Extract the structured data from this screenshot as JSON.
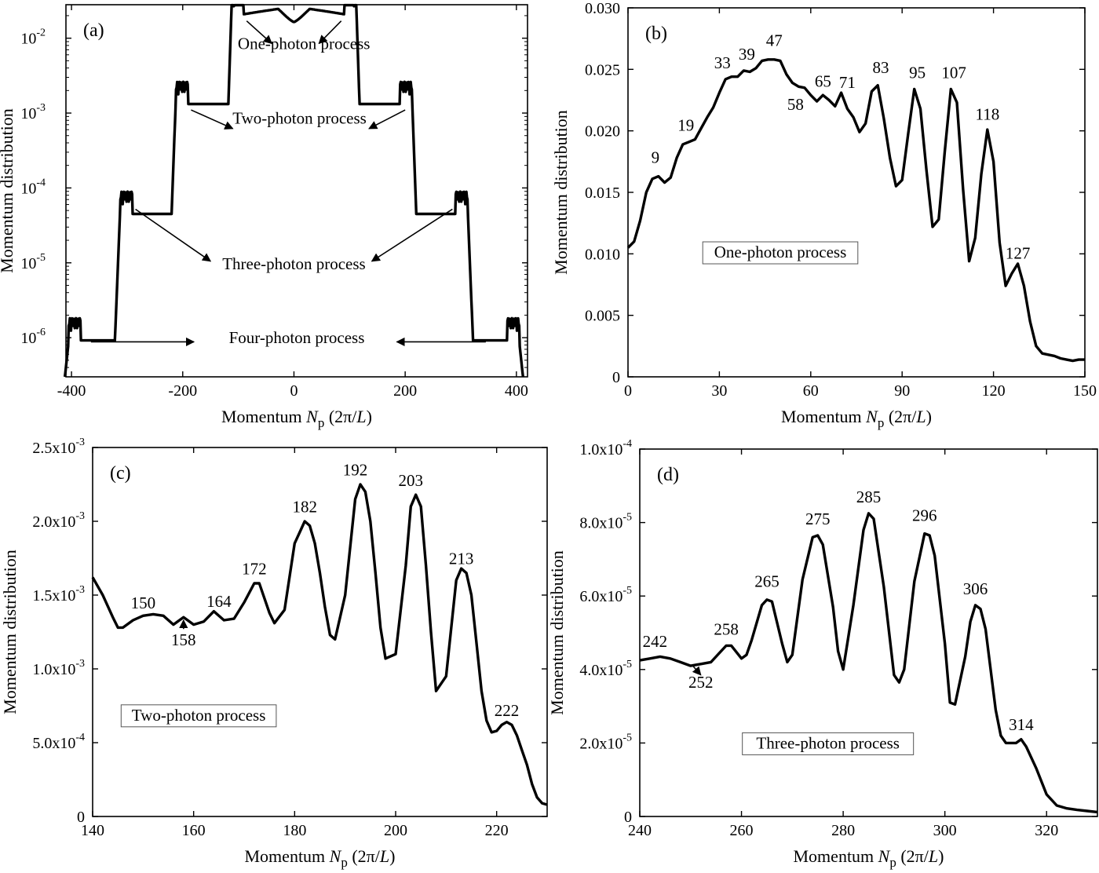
{
  "chart_data": [
    {
      "type": "line",
      "panel_label": "(a)",
      "xlabel_prefix": "Momentum ",
      "xlabel_symbol": "N",
      "xlabel_sub": "p",
      "xlabel_unit_open": " (2π/",
      "xlabel_unit_L": "L",
      "xlabel_unit_close": ")",
      "ylabel": "Momentum distribution",
      "xlim": [
        -410,
        420
      ],
      "ylim": [
        3e-07,
        0.028
      ],
      "yscale": "log",
      "xticks": [
        -400,
        -200,
        0,
        200,
        400
      ],
      "xtick_labels": [
        "-400",
        "-200",
        "0",
        "200",
        "400"
      ],
      "yticks": [
        1e-06,
        1e-05,
        0.0001,
        0.001,
        0.01
      ],
      "ytick_base": "10",
      "ytick_exponents": [
        "-6",
        "-5",
        "-4",
        "-3",
        "-2"
      ],
      "annotations": [
        {
          "text": "One-photon process",
          "x": 18,
          "y": 0.0072
        },
        {
          "text": "Two-photon process",
          "x": 10,
          "y": 0.00072
        },
        {
          "text": "Three-photon process",
          "x": 0,
          "y": 8.2e-06
        },
        {
          "text": "Four-photon process",
          "x": 5,
          "y": 8.5e-07
        }
      ],
      "arrows": [
        {
          "from": [
            -85,
            0.017
          ],
          "to": [
            -40,
            0.0085
          ]
        },
        {
          "from": [
            85,
            0.017
          ],
          "to": [
            45,
            0.0085
          ]
        },
        {
          "from": [
            -185,
            0.0011
          ],
          "to": [
            -110,
            0.00062
          ]
        },
        {
          "from": [
            200,
            0.0011
          ],
          "to": [
            135,
            0.00062
          ]
        },
        {
          "from": [
            -285,
            5.2e-05
          ],
          "to": [
            -150,
            1.05e-05
          ]
        },
        {
          "from": [
            285,
            5.2e-05
          ],
          "to": [
            140,
            1.05e-05
          ]
        },
        {
          "from": [
            -365,
            8.8e-07
          ],
          "to": [
            -180,
            8.8e-07
          ]
        },
        {
          "from": [
            345,
            8.8e-07
          ],
          "to": [
            185,
            8.8e-07
          ]
        }
      ]
    },
    {
      "type": "line",
      "panel_label": "(b)",
      "xlabel_prefix": "Momentum ",
      "xlabel_symbol": "N",
      "xlabel_sub": "p",
      "xlabel_unit_open": " (2π/",
      "xlabel_unit_L": "L",
      "xlabel_unit_close": ")",
      "ylabel": "Momentum distribution",
      "xlim": [
        0,
        150
      ],
      "ylim": [
        0,
        0.03
      ],
      "xticks": [
        0,
        30,
        60,
        90,
        120,
        150
      ],
      "xtick_labels": [
        "0",
        "30",
        "60",
        "90",
        "120",
        "150"
      ],
      "yticks": [
        0,
        0.005,
        0.01,
        0.015,
        0.02,
        0.025,
        0.03
      ],
      "ytick_labels": [
        "0",
        "0.005",
        "0.010",
        "0.015",
        "0.020",
        "0.025",
        "0.030"
      ],
      "x": [
        0,
        2,
        4,
        6,
        8,
        10,
        12,
        14,
        16,
        18,
        20,
        22,
        24,
        26,
        28,
        30,
        32,
        34,
        36,
        38,
        40,
        42,
        44,
        46,
        48,
        50,
        52,
        54,
        56,
        58,
        60,
        62,
        64,
        66,
        68,
        70,
        72,
        74,
        76,
        78,
        80,
        82,
        84,
        86,
        88,
        90,
        92,
        94,
        96,
        98,
        100,
        102,
        104,
        106,
        108,
        110,
        112,
        114,
        116,
        118,
        120,
        122,
        124,
        126,
        128,
        130,
        132,
        134,
        136,
        138,
        140,
        142,
        144,
        146,
        148,
        150
      ],
      "y": [
        0.0105,
        0.011,
        0.0127,
        0.015,
        0.0161,
        0.0163,
        0.0158,
        0.0162,
        0.0178,
        0.0189,
        0.0191,
        0.0193,
        0.0202,
        0.0211,
        0.0219,
        0.0231,
        0.0242,
        0.0244,
        0.0244,
        0.0249,
        0.0248,
        0.0251,
        0.0257,
        0.0258,
        0.0258,
        0.0257,
        0.0246,
        0.0239,
        0.0236,
        0.0235,
        0.0229,
        0.0224,
        0.0229,
        0.0225,
        0.022,
        0.0231,
        0.0218,
        0.0211,
        0.0199,
        0.0206,
        0.0232,
        0.0237,
        0.021,
        0.0178,
        0.0155,
        0.016,
        0.0198,
        0.0234,
        0.0218,
        0.0168,
        0.0122,
        0.0128,
        0.0183,
        0.0234,
        0.0223,
        0.0153,
        0.0094,
        0.0113,
        0.0165,
        0.0201,
        0.0175,
        0.0109,
        0.0074,
        0.0084,
        0.0092,
        0.0074,
        0.0045,
        0.0025,
        0.0019,
        0.0018,
        0.0017,
        0.0015,
        0.0014,
        0.0013,
        0.0014,
        0.0014
      ],
      "peak_labels": [
        {
          "text": "9",
          "x": 9,
          "y": 0.0174
        },
        {
          "text": "19",
          "x": 19,
          "y": 0.02
        },
        {
          "text": "33",
          "x": 31,
          "y": 0.0251
        },
        {
          "text": "39",
          "x": 39,
          "y": 0.0258
        },
        {
          "text": "47",
          "x": 48,
          "y": 0.0269
        },
        {
          "text": "58",
          "x": 55,
          "y": 0.0217
        },
        {
          "text": "65",
          "x": 64,
          "y": 0.0236
        },
        {
          "text": "71",
          "x": 72,
          "y": 0.0235
        },
        {
          "text": "83",
          "x": 83,
          "y": 0.0247
        },
        {
          "text": "95",
          "x": 95,
          "y": 0.0243
        },
        {
          "text": "107",
          "x": 107,
          "y": 0.0243
        },
        {
          "text": "118",
          "x": 118,
          "y": 0.0209
        },
        {
          "text": "127",
          "x": 128,
          "y": 0.0096
        }
      ],
      "boxed_label": {
        "text": "One-photon process",
        "x": 50,
        "y": 0.0097
      }
    },
    {
      "type": "line",
      "panel_label": "(c)",
      "xlabel_prefix": "Momentum ",
      "xlabel_symbol": "N",
      "xlabel_sub": "p",
      "xlabel_unit_open": " (2π/",
      "xlabel_unit_L": "L",
      "xlabel_unit_close": ")",
      "ylabel": "Momentum distribution",
      "xlim": [
        140,
        230
      ],
      "ylim": [
        0,
        0.0025
      ],
      "xticks": [
        140,
        160,
        180,
        200,
        220
      ],
      "xtick_labels": [
        "140",
        "160",
        "180",
        "200",
        "220"
      ],
      "yticks": [
        0,
        0.0005,
        0.001,
        0.0015,
        0.002,
        0.0025
      ],
      "ytick_labels": [
        "0",
        "5.0x10",
        "1.0x10",
        "1.5x10",
        "2.0x10",
        "2.5x10"
      ],
      "ytick_exponents": [
        "",
        "-4",
        "-3",
        "-3",
        "-3",
        "-3"
      ],
      "x": [
        140,
        142,
        144,
        145,
        146,
        148,
        150,
        152,
        154,
        156,
        158,
        160,
        162,
        164,
        166,
        168,
        170,
        172,
        173,
        175,
        176,
        178,
        180,
        182,
        183,
        184,
        185,
        186,
        187,
        188,
        190,
        192,
        193,
        194,
        195,
        196,
        197,
        198,
        200,
        202,
        203,
        204,
        205,
        206,
        207,
        208,
        210,
        212,
        213,
        214,
        215,
        216,
        217,
        218,
        219,
        220,
        221,
        222,
        223,
        224,
        225,
        226,
        227,
        228,
        229,
        230
      ],
      "y": [
        0.00162,
        0.0015,
        0.00135,
        0.00128,
        0.00128,
        0.00133,
        0.00136,
        0.00137,
        0.00136,
        0.0013,
        0.00135,
        0.0013,
        0.00132,
        0.00139,
        0.00133,
        0.00134,
        0.00145,
        0.00158,
        0.00158,
        0.00138,
        0.00131,
        0.0014,
        0.00185,
        0.002,
        0.00197,
        0.00185,
        0.00165,
        0.00142,
        0.00123,
        0.0012,
        0.0015,
        0.00215,
        0.00225,
        0.0022,
        0.002,
        0.00165,
        0.00128,
        0.00107,
        0.0011,
        0.0017,
        0.0021,
        0.00218,
        0.0021,
        0.0017,
        0.00125,
        0.00085,
        0.00095,
        0.0016,
        0.00168,
        0.00165,
        0.0015,
        0.00118,
        0.00085,
        0.00065,
        0.00057,
        0.00058,
        0.00062,
        0.00064,
        0.00062,
        0.00055,
        0.00045,
        0.00035,
        0.00022,
        0.00013,
        9e-05,
        8e-05
      ],
      "peak_labels": [
        {
          "text": "150",
          "x": 150,
          "y": 0.00141
        },
        {
          "text": "164",
          "x": 165,
          "y": 0.00142
        },
        {
          "text": "172",
          "x": 172,
          "y": 0.00164
        },
        {
          "text": "182",
          "x": 182,
          "y": 0.00206
        },
        {
          "text": "192",
          "x": 192,
          "y": 0.00231
        },
        {
          "text": "203",
          "x": 203,
          "y": 0.00224
        },
        {
          "text": "213",
          "x": 213,
          "y": 0.00171
        },
        {
          "text": "222",
          "x": 222,
          "y": 0.00068
        }
      ],
      "arrow_labels": [
        {
          "text": "158",
          "x": 158,
          "y": 0.00116,
          "arrow_from": [
            158,
            0.00127
          ],
          "arrow_to": [
            158,
            0.00133
          ]
        }
      ],
      "boxed_label": {
        "text": "Two-photon process",
        "x": 161,
        "y": 0.00065
      }
    },
    {
      "type": "line",
      "panel_label": "(d)",
      "xlabel_prefix": "Momentum ",
      "xlabel_symbol": "N",
      "xlabel_sub": "p",
      "xlabel_unit_open": " (2π/",
      "xlabel_unit_L": "L",
      "xlabel_unit_close": ")",
      "ylabel": "Momentum distribution",
      "xlim": [
        240,
        330
      ],
      "ylim": [
        0,
        0.0001
      ],
      "xticks": [
        240,
        260,
        280,
        300,
        320
      ],
      "xtick_labels": [
        "240",
        "260",
        "280",
        "300",
        "320"
      ],
      "yticks": [
        0,
        2e-05,
        4e-05,
        6e-05,
        8e-05,
        0.0001
      ],
      "ytick_labels": [
        "0",
        "2.0x10",
        "4.0x10",
        "6.0x10",
        "8.0x10",
        "1.0x10"
      ],
      "ytick_exponents": [
        "",
        "-5",
        "-5",
        "-5",
        "-5",
        "-4"
      ],
      "x": [
        240,
        242,
        244,
        246,
        248,
        250,
        252,
        254,
        256,
        257,
        258,
        260,
        261,
        262,
        264,
        265,
        266,
        268,
        269,
        270,
        272,
        274,
        275,
        276,
        278,
        279,
        280,
        282,
        284,
        285,
        286,
        288,
        290,
        291,
        292,
        294,
        296,
        297,
        298,
        300,
        301,
        302,
        304,
        305,
        306,
        307,
        308,
        310,
        311,
        312,
        314,
        315,
        316,
        318,
        320,
        322,
        324,
        326,
        328,
        330
      ],
      "y": [
        4.25e-05,
        4.3e-05,
        4.35e-05,
        4.3e-05,
        4.2e-05,
        4.1e-05,
        4.15e-05,
        4.2e-05,
        4.5e-05,
        4.65e-05,
        4.65e-05,
        4.3e-05,
        4.4e-05,
        4.8e-05,
        5.75e-05,
        5.9e-05,
        5.85e-05,
        4.7e-05,
        4.2e-05,
        4.4e-05,
        6.45e-05,
        7.6e-05,
        7.65e-05,
        7.4e-05,
        5.7e-05,
        4.5e-05,
        4e-05,
        5.75e-05,
        7.8e-05,
        8.25e-05,
        8.1e-05,
        6.25e-05,
        3.85e-05,
        3.65e-05,
        4e-05,
        6.4e-05,
        7.7e-05,
        7.65e-05,
        7.1e-05,
        4.7e-05,
        3.1e-05,
        3.05e-05,
        4.35e-05,
        5.3e-05,
        5.75e-05,
        5.65e-05,
        5.1e-05,
        2.9e-05,
        2.2e-05,
        2e-05,
        2e-05,
        2.1e-05,
        1.9e-05,
        1.3e-05,
        6e-06,
        3e-06,
        2.2e-06,
        1.8e-06,
        1.5e-06,
        1.2e-06
      ],
      "peak_labels": [
        {
          "text": "242",
          "x": 243,
          "y": 4.62e-05
        },
        {
          "text": "258",
          "x": 257,
          "y": 4.95e-05
        },
        {
          "text": "265",
          "x": 265,
          "y": 6.25e-05
        },
        {
          "text": "275",
          "x": 275,
          "y": 7.95e-05
        },
        {
          "text": "285",
          "x": 285,
          "y": 8.55e-05
        },
        {
          "text": "296",
          "x": 296,
          "y": 8.05e-05
        },
        {
          "text": "306",
          "x": 306,
          "y": 6.05e-05
        },
        {
          "text": "314",
          "x": 315,
          "y": 2.35e-05
        }
      ],
      "arrow_labels": [
        {
          "text": "252",
          "x": 252,
          "y": 3.5e-05,
          "arrow_from": [
            250.5,
            4.09e-05
          ],
          "arrow_to": [
            252,
            3.85e-05
          ]
        }
      ],
      "boxed_label": {
        "text": "Three-photon process",
        "x": 277,
        "y": 1.85e-05
      }
    }
  ]
}
